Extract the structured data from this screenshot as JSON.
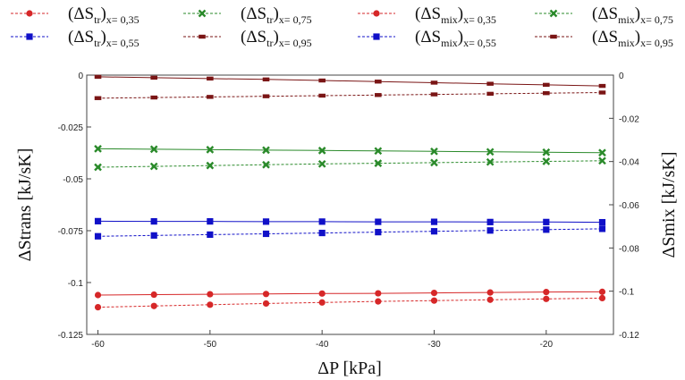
{
  "chart_data": {
    "type": "line",
    "xlabel": "ΔP [kPa]",
    "ylabel_left": "ΔStrans [kJ/sK]",
    "ylabel_right": "ΔSmix [kJ/sK]",
    "xlim": [
      -61,
      -14
    ],
    "ylim_left": [
      -0.125,
      0
    ],
    "ylim_right": [
      -0.12,
      0
    ],
    "x_ticks": [
      -60,
      -50,
      -40,
      -30,
      -20
    ],
    "y_ticks_left": [
      "0",
      "-0.025",
      "-0.05",
      "-0.075",
      "-0.1",
      "-0.125"
    ],
    "y_ticks_left_values": [
      0,
      -0.025,
      -0.05,
      -0.075,
      -0.1,
      -0.125
    ],
    "y_ticks_right": [
      "0",
      "-0.02",
      "-0.04",
      "-0.06",
      "-0.08",
      "-0.1",
      "-0.12"
    ],
    "y_ticks_right_values": [
      0,
      -0.02,
      -0.04,
      -0.06,
      -0.08,
      -0.1,
      -0.12
    ],
    "x": [
      -60,
      -55,
      -50,
      -45,
      -40,
      -35,
      -30,
      -25,
      -20,
      -15
    ],
    "series": [
      {
        "legend_main": "(ΔS",
        "legend_sub1": "tr",
        "legend_tail": ")",
        "legend_sub2": "x= 0,35",
        "axis": "left",
        "dashed": true,
        "marker": "circle",
        "color": "#d62728",
        "values": [
          -0.1119,
          -0.1113,
          -0.1107,
          -0.1101,
          -0.1096,
          -0.1091,
          -0.1087,
          -0.1083,
          -0.1079,
          -0.1075
        ]
      },
      {
        "legend_main": "(ΔS",
        "legend_sub1": "tr",
        "legend_tail": ")",
        "legend_sub2": "x= 0,55",
        "axis": "left",
        "dashed": true,
        "marker": "square",
        "color": "#1010c8",
        "values": [
          -0.0777,
          -0.0773,
          -0.0769,
          -0.0765,
          -0.0761,
          -0.0757,
          -0.0753,
          -0.0749,
          -0.0745,
          -0.0741
        ]
      },
      {
        "legend_main": "(ΔS",
        "legend_sub1": "tr",
        "legend_tail": ")",
        "legend_sub2": "x= 0,75",
        "axis": "left",
        "dashed": true,
        "marker": "x",
        "color": "#2a8a2a",
        "values": [
          -0.0444,
          -0.044,
          -0.0436,
          -0.0432,
          -0.0428,
          -0.0425,
          -0.0422,
          -0.0419,
          -0.0416,
          -0.0413
        ]
      },
      {
        "legend_main": "(ΔS",
        "legend_sub1": "tr",
        "legend_tail": ")",
        "legend_sub2": "x= 0,95",
        "axis": "left",
        "dashed": true,
        "marker": "bar",
        "color": "#7a1515",
        "values": [
          -0.0111,
          -0.0108,
          -0.0105,
          -0.0102,
          -0.0099,
          -0.0096,
          -0.0093,
          -0.009,
          -0.0087,
          -0.0084
        ]
      },
      {
        "legend_main": "(ΔS",
        "legend_sub1": "mix",
        "legend_tail": ")",
        "legend_sub2": "x= 0,35",
        "axis": "right",
        "dashed": false,
        "marker": "circle",
        "color": "#d62728",
        "values": [
          -0.1018,
          -0.1016,
          -0.1014,
          -0.1013,
          -0.1011,
          -0.101,
          -0.1008,
          -0.1006,
          -0.1004,
          -0.1003
        ]
      },
      {
        "legend_main": "(ΔS",
        "legend_sub1": "mix",
        "legend_tail": ")",
        "legend_sub2": "x= 0,55",
        "axis": "right",
        "dashed": false,
        "marker": "square",
        "color": "#1010c8",
        "values": [
          -0.0676,
          -0.0677,
          -0.0677,
          -0.0678,
          -0.0678,
          -0.0679,
          -0.0679,
          -0.068,
          -0.068,
          -0.0681
        ]
      },
      {
        "legend_main": "(ΔS",
        "legend_sub1": "mix",
        "legend_tail": ")",
        "legend_sub2": "x= 0,75",
        "axis": "right",
        "dashed": false,
        "marker": "x",
        "color": "#2a8a2a",
        "values": [
          -0.0341,
          -0.0343,
          -0.0345,
          -0.0347,
          -0.0349,
          -0.0351,
          -0.0353,
          -0.0355,
          -0.0357,
          -0.0359
        ]
      },
      {
        "legend_main": "(ΔS",
        "legend_sub1": "mix",
        "legend_tail": ")",
        "legend_sub2": "x= 0,95",
        "axis": "right",
        "dashed": false,
        "marker": "bar",
        "color": "#7a1515",
        "values": [
          -0.0008,
          -0.0012,
          -0.0016,
          -0.002,
          -0.0025,
          -0.003,
          -0.0035,
          -0.004,
          -0.0045,
          -0.005
        ]
      }
    ],
    "grid": false,
    "legend_position": "top"
  }
}
